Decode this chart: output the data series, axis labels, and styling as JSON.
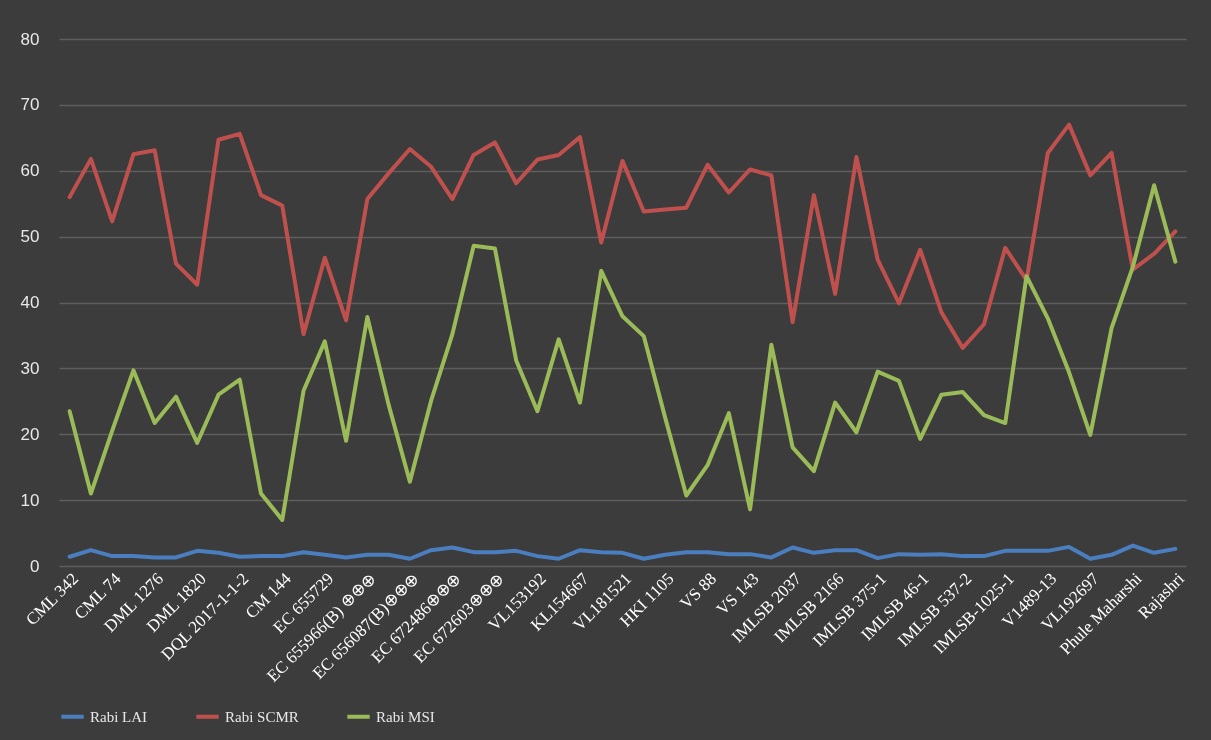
{
  "chart_data": {
    "type": "line",
    "categories": [
      "CML 342",
      null,
      "CML 74",
      null,
      "DML 1276",
      null,
      "DML 1820",
      null,
      "DQL 2017-1-1-2",
      null,
      "CM 144",
      null,
      "EC 655729",
      null,
      "EC 655966(B) ⊕⊕⊕",
      null,
      "EC 656087(B)⊕⊕⊕",
      null,
      "EC 672486⊕⊕⊕",
      null,
      "EC 672603⊕⊕⊕",
      null,
      "VL153192",
      null,
      "KL154667",
      null,
      "VL181521",
      null,
      "HKI 1105",
      null,
      "VS 88",
      null,
      "VS 143",
      null,
      "IMLSB 2037",
      null,
      "IMLSB 2166",
      null,
      "IMLSB 375-1",
      null,
      "IMLSB 46-1",
      null,
      "IMLSB 537-2",
      null,
      "IMLSB-1025-1",
      null,
      "V1489-13",
      null,
      "VL192697",
      null,
      "Phule Maharshi",
      null,
      "Rajashri"
    ],
    "series": [
      {
        "name": "Rabi LAI",
        "color": "#4a7ebf",
        "values": [
          1.4,
          2.4,
          1.5,
          1.5,
          1.3,
          1.3,
          2.3,
          2.0,
          1.4,
          1.5,
          1.5,
          2.1,
          1.7,
          1.3,
          1.7,
          1.7,
          1.1,
          2.4,
          2.8,
          2.1,
          2.1,
          2.3,
          1.5,
          1.1,
          2.4,
          2.1,
          2.0,
          1.1,
          1.7,
          2.1,
          2.1,
          1.8,
          1.8,
          1.3,
          2.8,
          2.0,
          2.4,
          2.4,
          1.2,
          1.8,
          1.7,
          1.8,
          1.5,
          1.5,
          2.3,
          2.3,
          2.3,
          2.9,
          1.1,
          1.7,
          3.1,
          2.0,
          2.6
        ]
      },
      {
        "name": "Rabi SCMR",
        "color": "#c0504d",
        "values": [
          56.0,
          61.8,
          52.3,
          62.5,
          63.1,
          45.9,
          42.7,
          64.7,
          65.6,
          56.3,
          54.7,
          35.2,
          46.8,
          37.3,
          55.7,
          59.6,
          63.3,
          60.6,
          55.7,
          62.4,
          64.3,
          58.1,
          61.7,
          62.4,
          65.1,
          49.1,
          61.5,
          53.8,
          54.1,
          54.4,
          60.9,
          56.7,
          60.2,
          59.3,
          37.0,
          56.3,
          41.3,
          62.1,
          46.5,
          39.9,
          48.0,
          38.5,
          33.1,
          36.7,
          48.3,
          43.4,
          62.7,
          67.0,
          59.3,
          62.7,
          45.0,
          47.4,
          50.8
        ]
      },
      {
        "name": "Rabi MSI",
        "color": "#9bbb59",
        "values": [
          23.5,
          11.0,
          20.5,
          29.7,
          21.7,
          25.7,
          18.7,
          26.0,
          28.3,
          11.0,
          7.0,
          26.6,
          34.1,
          19.0,
          37.8,
          24.5,
          12.8,
          25.1,
          35.2,
          48.6,
          48.2,
          31.2,
          23.5,
          34.4,
          24.8,
          44.8,
          37.9,
          34.9,
          22.6,
          10.7,
          15.3,
          23.2,
          8.6,
          33.6,
          18.0,
          14.4,
          24.8,
          20.3,
          29.5,
          28.1,
          19.3,
          26.0,
          26.4,
          22.9,
          21.7,
          44.0,
          37.6,
          29.4,
          19.9,
          36.1,
          45.4,
          57.8,
          46.2
        ]
      }
    ],
    "ylim": [
      0,
      80
    ],
    "yticks": [
      0,
      10,
      20,
      30,
      40,
      50,
      60,
      70,
      80
    ],
    "grid": "y",
    "legend": "bottom",
    "marker": "none",
    "line_style": "solid"
  }
}
